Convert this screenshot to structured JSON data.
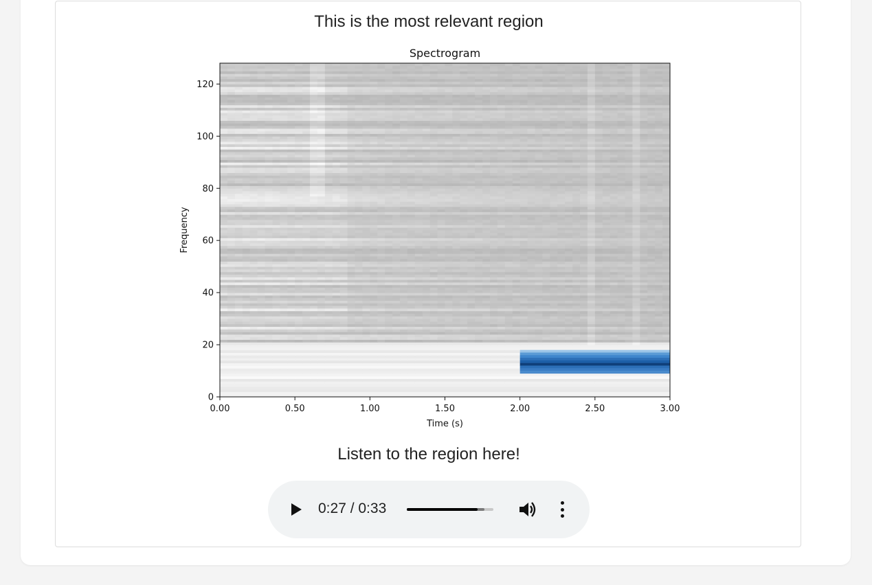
{
  "panel": {
    "heading": "This is the most relevant region",
    "listen_heading": "Listen to the region here!"
  },
  "audio": {
    "time_display": "0:27 / 0:33",
    "progress_fraction": 0.818,
    "icons": {
      "play": "play-icon",
      "volume": "volume-icon",
      "menu": "more-vert-icon"
    }
  },
  "chart_data": {
    "type": "heatmap",
    "title": "Spectrogram",
    "xlabel": "Time (s)",
    "ylabel": "Frequency",
    "xlim": [
      0,
      3
    ],
    "ylim": [
      0,
      128
    ],
    "x_ticks": [
      0,
      0.5,
      1.0,
      1.5,
      2.0,
      2.5,
      3.0
    ],
    "x_tick_labels": [
      "0.00",
      "0.50",
      "1.00",
      "1.50",
      "2.00",
      "2.50",
      "3.00"
    ],
    "y_ticks": [
      0,
      20,
      40,
      60,
      80,
      100,
      120
    ],
    "y_tick_labels": [
      "0",
      "20",
      "40",
      "60",
      "80",
      "100",
      "120"
    ],
    "colormap": "grayscale spectrogram",
    "highlight_region": {
      "x": [
        2.0,
        3.0
      ],
      "y": [
        9,
        18
      ],
      "color": "#2c6fb7"
    }
  }
}
